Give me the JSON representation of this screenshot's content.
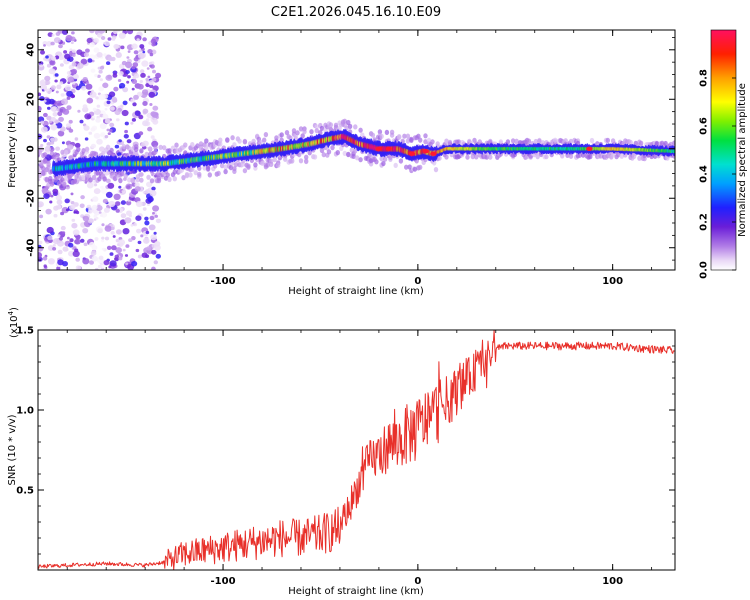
{
  "chart_data": [
    {
      "type": "heatmap",
      "title": "C2E1.2026.045.16.10.E09",
      "xlabel": "Height of straight line (km)",
      "ylabel": "Frequency (Hz)",
      "xlim": [
        -195,
        132
      ],
      "ylim": [
        -49,
        48
      ],
      "x_ticks": [
        -100,
        0,
        100
      ],
      "x_tick_labels": [
        "-100",
        "0",
        "100"
      ],
      "y_ticks": [
        -40,
        -20,
        0,
        20,
        40
      ],
      "y_tick_labels": [
        "-40",
        "-20",
        "0",
        "20",
        "40"
      ],
      "colorbar": {
        "label": "Normalized spectral amplitude",
        "range": [
          0,
          1
        ],
        "ticks": [
          0.0,
          0.2,
          0.4,
          0.6,
          0.8
        ],
        "tick_labels": [
          "0.0",
          "0.2",
          "0.4",
          "0.6",
          "0.8"
        ]
      },
      "ridge": {
        "name": "dominant frequency ridge",
        "x": [
          -185,
          -165,
          -150,
          -130,
          -110,
          -90,
          -70,
          -55,
          -45,
          -38,
          -30,
          -20,
          -10,
          -3,
          3,
          8,
          15,
          40,
          80,
          100,
          132
        ],
        "y": [
          -8,
          -6,
          -6,
          -6,
          -4,
          -2,
          0,
          2,
          4,
          5,
          2,
          0,
          0,
          -2,
          -1,
          -2,
          0,
          0,
          0,
          0,
          -1
        ],
        "amplitude": [
          0.4,
          0.4,
          0.5,
          0.55,
          0.5,
          0.55,
          0.75,
          0.7,
          0.8,
          0.9,
          0.85,
          1.0,
          0.95,
          0.9,
          0.85,
          0.9,
          0.75,
          0.55,
          0.5,
          0.75,
          0.5
        ]
      }
    },
    {
      "type": "line",
      "xlabel": "Height of straight line (km)",
      "ylabel": "SNR (10 * v/v)",
      "multiplier_label": "(x10",
      "multiplier_exp": "4",
      "multiplier_close": ")",
      "xlim": [
        -195,
        132
      ],
      "ylim": [
        0,
        1.5
      ],
      "x_ticks": [
        -100,
        0,
        100
      ],
      "x_tick_labels": [
        "-100",
        "0",
        "100"
      ],
      "y_ticks": [
        0.5,
        1.0,
        1.5
      ],
      "y_tick_labels": [
        "0.5",
        "1.0",
        "1.5"
      ],
      "color": "#e8302a",
      "series": [
        {
          "name": "SNR",
          "x": [
            -195,
            -180,
            -160,
            -140,
            -130,
            -120,
            -110,
            -100,
            -90,
            -80,
            -70,
            -60,
            -50,
            -40,
            -35,
            -30,
            -25,
            -20,
            -15,
            -10,
            -5,
            0,
            5,
            10,
            15,
            20,
            25,
            30,
            35,
            40,
            45,
            50,
            60,
            80,
            100,
            120,
            132
          ],
          "y": [
            0.02,
            0.03,
            0.04,
            0.03,
            0.05,
            0.1,
            0.12,
            0.14,
            0.16,
            0.18,
            0.2,
            0.2,
            0.22,
            0.26,
            0.4,
            0.55,
            0.68,
            0.72,
            0.78,
            0.8,
            0.85,
            0.88,
            0.95,
            1.0,
            1.05,
            1.12,
            1.18,
            1.25,
            1.32,
            1.38,
            1.4,
            1.4,
            1.4,
            1.4,
            1.4,
            1.38,
            1.37
          ]
        }
      ]
    }
  ]
}
